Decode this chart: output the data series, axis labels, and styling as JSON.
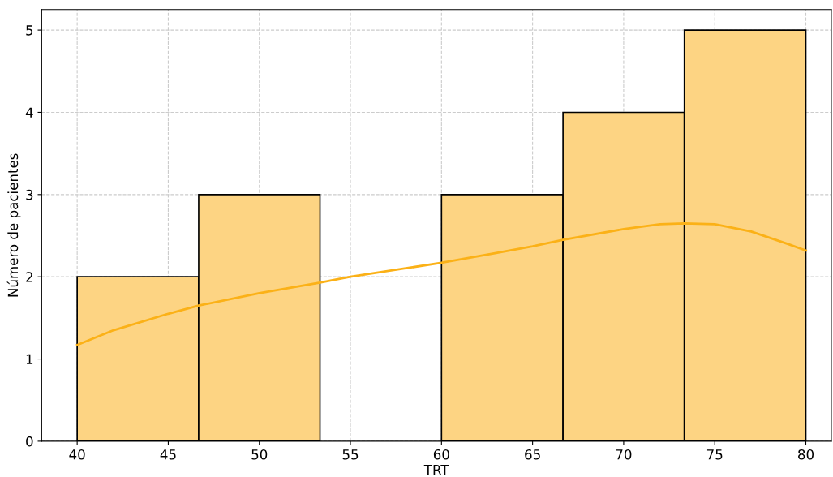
{
  "chart_data": {
    "type": "histogram",
    "xlabel": "TRT",
    "ylabel": "Número de pacientes",
    "bins": [
      40,
      46.67,
      53.33,
      60,
      66.67,
      73.33,
      80
    ],
    "values": [
      2,
      3,
      0,
      3,
      4,
      5
    ],
    "color": "#fdd483",
    "series": [
      {
        "type": "line",
        "color": "#fbb117",
        "x": [
          40,
          42,
          45,
          46.67,
          50,
          53.33,
          55,
          60,
          63,
          65,
          66.67,
          70,
          72,
          73.33,
          75,
          77,
          79,
          80
        ],
        "values": [
          1.17,
          1.35,
          1.55,
          1.65,
          1.8,
          1.93,
          2.0,
          2.17,
          2.29,
          2.37,
          2.45,
          2.58,
          2.64,
          2.65,
          2.64,
          2.55,
          2.4,
          2.32
        ]
      }
    ],
    "xlim": [
      38.05,
      81.4
    ],
    "ylim": [
      0,
      5.25
    ],
    "xticks": [
      40,
      45,
      50,
      55,
      60,
      65,
      70,
      75,
      80
    ],
    "yticks": [
      0,
      1,
      2,
      3,
      4,
      5
    ],
    "grid": true,
    "line_style": "solid"
  }
}
